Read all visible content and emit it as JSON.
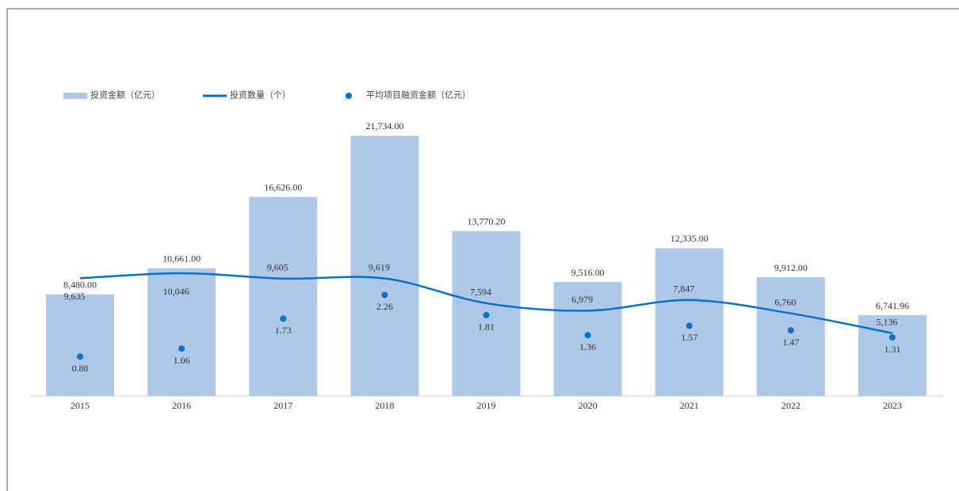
{
  "chart_data": {
    "type": "combo",
    "categories": [
      "2015",
      "2016",
      "2017",
      "2018",
      "2019",
      "2020",
      "2021",
      "2022",
      "2023"
    ],
    "series": [
      {
        "name": "投资金额（亿元）",
        "type": "bar",
        "color": "#aec8e9",
        "values": [
          8480.0,
          10661.0,
          16626.0,
          21734.0,
          13770.2,
          9516.0,
          12335.0,
          9912.0,
          6741.96
        ],
        "value_labels": [
          "8,480.00",
          "10,661.00",
          "16,626.00",
          "21,734.00",
          "13,770.20",
          "9,516.00",
          "12,335.00",
          "9,912.00",
          "6,741.96"
        ]
      },
      {
        "name": "投资数量（个）",
        "type": "line",
        "axis": "y2",
        "color": "#0b70c6",
        "values": [
          9635,
          10046,
          9605,
          9619,
          7594,
          6979,
          7847,
          6760,
          5136
        ],
        "value_labels": [
          "9,635",
          "10,046",
          "9,605",
          "9,619",
          "7,594",
          "6,979",
          "7,847",
          "6,760",
          "5,136"
        ]
      },
      {
        "name": "平均项目融资金额（亿元）",
        "type": "scatter",
        "axis": "y3",
        "color": "#0b70c6",
        "values": [
          0.88,
          1.06,
          1.73,
          2.26,
          1.81,
          1.36,
          1.57,
          1.47,
          1.31
        ]
      }
    ],
    "ylim": [
      0,
      25000
    ],
    "y2lim": [
      0,
      24500
    ],
    "y3lim": [
      0,
      6.7
    ],
    "legend": "top-left",
    "grid": false
  }
}
